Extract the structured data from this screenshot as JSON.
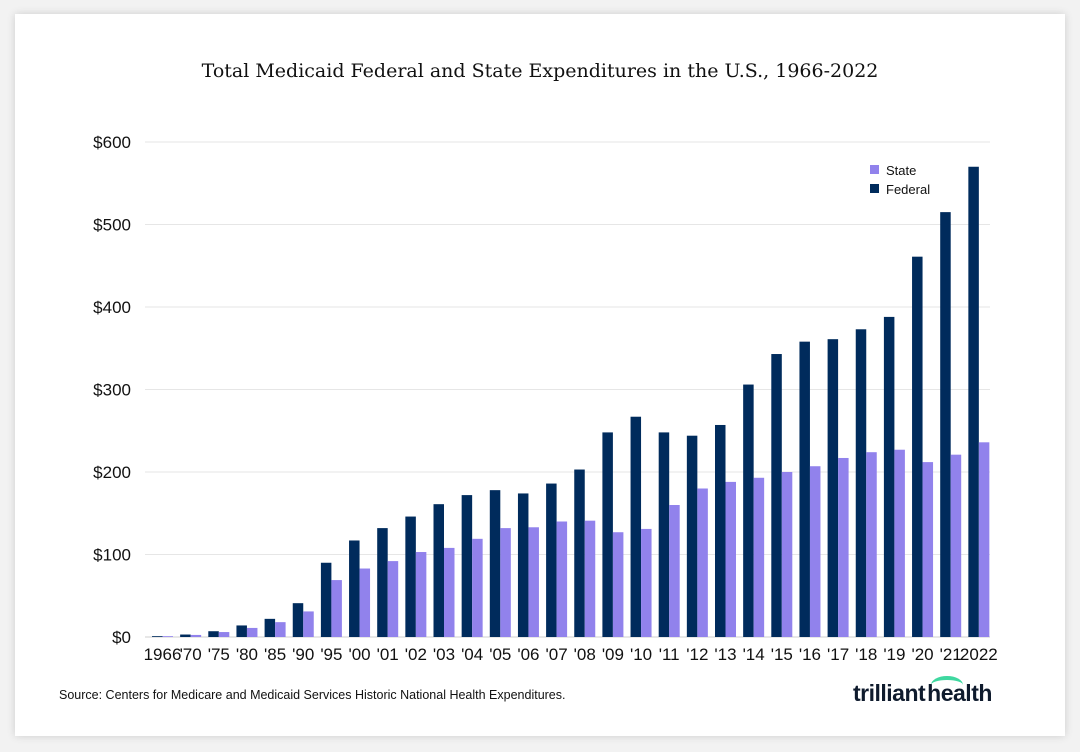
{
  "chart_data": {
    "type": "bar",
    "title": "Total Medicaid Federal and State Expenditures in the U.S., 1966-2022",
    "xlabel": "",
    "ylabel": "",
    "ylim": [
      0,
      600
    ],
    "yticks": [
      0,
      100,
      200,
      300,
      400,
      500,
      600
    ],
    "ytick_labels": [
      "$0",
      "$100",
      "$200",
      "$300",
      "$400",
      "$500",
      "$600"
    ],
    "grid": true,
    "legend_position": "top-right",
    "categories": [
      "1966",
      "'70",
      "'75",
      "'80",
      "'85",
      "'90",
      "'95",
      "'00",
      "'01",
      "'02",
      "'03",
      "'04",
      "'05",
      "'06",
      "'07",
      "'08",
      "'09",
      "'10",
      "'11",
      "'12",
      "'13",
      "'14",
      "'15",
      "'16",
      "'17",
      "'18",
      "'19",
      "'20",
      "'21",
      "2022"
    ],
    "series": [
      {
        "name": "Federal",
        "color": "#002b5c",
        "values": [
          1,
          3,
          7,
          14,
          22,
          41,
          90,
          117,
          132,
          146,
          161,
          172,
          178,
          174,
          186,
          203,
          248,
          267,
          248,
          244,
          257,
          306,
          343,
          358,
          361,
          373,
          388,
          461,
          515,
          570
        ]
      },
      {
        "name": "State",
        "color": "#9182ec",
        "values": [
          1,
          2.5,
          6,
          11,
          18,
          31,
          69,
          83,
          92,
          103,
          108,
          119,
          132,
          133,
          140,
          141,
          127,
          131,
          160,
          180,
          188,
          193,
          200,
          207,
          217,
          224,
          227,
          212,
          221,
          236
        ]
      }
    ],
    "legend_order": [
      "State",
      "Federal"
    ]
  },
  "source": "Source: Centers for Medicare and Medicaid Services Historic National Health Expenditures.",
  "logo": "trilliant health"
}
